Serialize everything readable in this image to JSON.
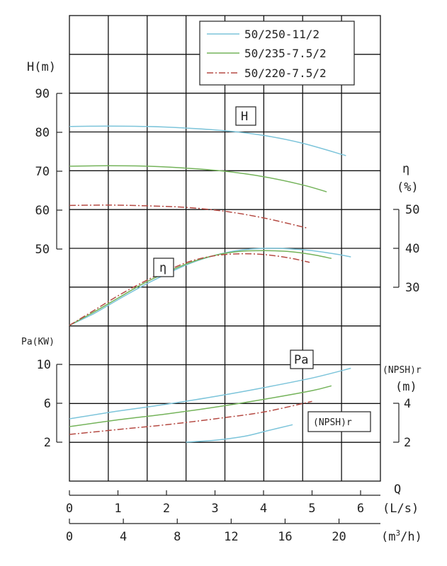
{
  "chart_data": {
    "type": "line",
    "title": "",
    "legend": {
      "placement": "top-right",
      "entries": [
        {
          "name": "50/250-11/2",
          "color": "#7cc4da",
          "dash": "solid"
        },
        {
          "name": "50/235-7.5/2",
          "color": "#74b35a",
          "dash": "solid"
        },
        {
          "name": "50/220-7.5/2",
          "color": "#b54a43",
          "dash": "dashdot"
        }
      ]
    },
    "axes": {
      "x_ls": {
        "label": "(L/s)",
        "ticks": [
          "0",
          "1",
          "2",
          "3",
          "4",
          "5",
          "6"
        ],
        "range": [
          0,
          6
        ]
      },
      "x_m3h": {
        "label_prefix": "(m",
        "label_sup": "3",
        "label_suffix": "/h)",
        "ticks": [
          "0",
          "4",
          "8",
          "12",
          "16",
          "20"
        ],
        "range": [
          0,
          21.6
        ]
      },
      "q_label": "Q",
      "h": {
        "label": "H(m)",
        "ticks": [
          "50",
          "60",
          "70",
          "80",
          "90"
        ],
        "range": [
          50,
          90
        ]
      },
      "eta": {
        "label_top": "η",
        "label_bottom": "(%)",
        "ticks": [
          "30",
          "40",
          "50"
        ],
        "range": [
          30,
          50
        ]
      },
      "pa": {
        "label": "Pa(KW)",
        "ticks": [
          "2",
          "6",
          "10"
        ],
        "range": [
          2,
          10
        ]
      },
      "npsh": {
        "label_top": "(NPSH)r",
        "label_bottom": "(m)",
        "ticks": [
          "2",
          "4"
        ],
        "range": [
          2,
          4
        ]
      }
    },
    "grid": true,
    "curve_labels": {
      "h": "H",
      "eta": "η",
      "pa": "Pa",
      "npsh": "(NPSH)r"
    },
    "series": [
      {
        "name": "50/250-11/2",
        "color": "#7cc4da",
        "dash": "solid",
        "head": {
          "x": [
            0,
            0.8,
            1.6,
            2.4,
            3.2,
            4.0,
            4.8,
            5.7
          ],
          "y": [
            81.5,
            81.6,
            81.5,
            81.1,
            80.4,
            79.2,
            77.2,
            74.0
          ]
        },
        "efficiency": {
          "x": [
            0,
            0.5,
            1.0,
            1.5,
            2.0,
            2.5,
            3.0,
            3.5,
            4.0,
            4.5,
            5.0,
            5.5,
            5.8
          ],
          "y": [
            20.2,
            23.2,
            26.8,
            30.3,
            33.4,
            36.2,
            38.2,
            39.5,
            40.0,
            39.9,
            39.4,
            38.5,
            37.8
          ]
        },
        "power": {
          "x": [
            0,
            1,
            2,
            3,
            4,
            5,
            5.8
          ],
          "y": [
            4.4,
            5.2,
            5.9,
            6.7,
            7.6,
            8.6,
            9.6
          ]
        },
        "npsh": {
          "x": [
            2.4,
            3.0,
            3.6,
            4.1,
            4.6
          ],
          "y": [
            2.0,
            2.1,
            2.3,
            2.6,
            2.9
          ]
        }
      },
      {
        "name": "50/235-7.5/2",
        "color": "#74b35a",
        "dash": "solid",
        "head": {
          "x": [
            0,
            0.8,
            1.6,
            2.4,
            3.2,
            4.0,
            4.8,
            5.3
          ],
          "y": [
            71.3,
            71.4,
            71.3,
            70.8,
            70.0,
            68.6,
            66.5,
            64.7
          ]
        },
        "efficiency": {
          "x": [
            0,
            0.5,
            1.0,
            1.5,
            2.0,
            2.5,
            3.0,
            3.5,
            4.0,
            4.5,
            5.0,
            5.4
          ],
          "y": [
            20.2,
            23.6,
            27.2,
            30.8,
            33.8,
            36.4,
            38.2,
            39.2,
            39.4,
            39.2,
            38.4,
            37.4
          ]
        },
        "power": {
          "x": [
            0,
            1,
            2,
            3,
            4,
            5,
            5.4
          ],
          "y": [
            3.6,
            4.3,
            4.9,
            5.6,
            6.4,
            7.3,
            7.8
          ]
        }
      },
      {
        "name": "50/220-7.5/2",
        "color": "#b54a43",
        "dash": "dashdot",
        "head": {
          "x": [
            0,
            0.8,
            1.6,
            2.4,
            3.2,
            4.0,
            4.9
          ],
          "y": [
            61.2,
            61.3,
            61.1,
            60.7,
            59.7,
            58.0,
            55.4
          ]
        },
        "efficiency": {
          "x": [
            0,
            0.5,
            1.0,
            1.5,
            2.0,
            2.5,
            3.0,
            3.5,
            4.0,
            4.5,
            4.95
          ],
          "y": [
            20.2,
            24.0,
            27.8,
            31.2,
            34.2,
            36.7,
            38.1,
            38.6,
            38.4,
            37.6,
            36.4
          ]
        },
        "power": {
          "x": [
            0,
            1,
            2,
            3,
            4,
            5
          ],
          "y": [
            2.8,
            3.3,
            3.8,
            4.4,
            5.1,
            6.2
          ]
        }
      }
    ]
  }
}
